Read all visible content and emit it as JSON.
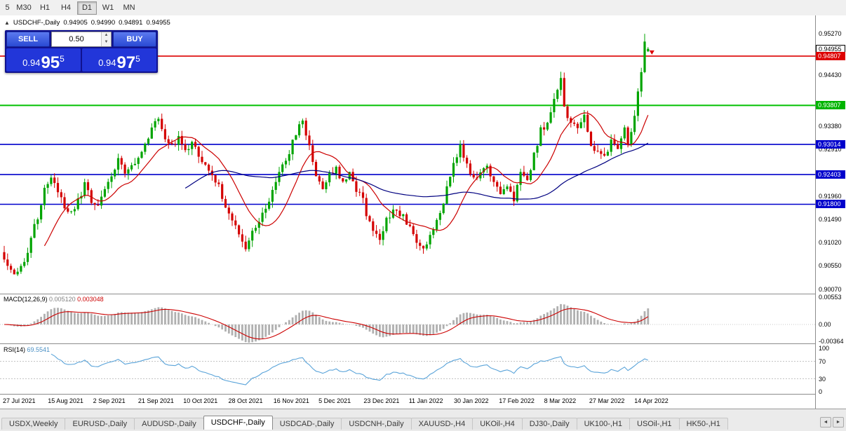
{
  "toolbar": {
    "timeframes": [
      "5",
      "M30",
      "H1",
      "H4",
      "D1",
      "W1",
      "MN"
    ],
    "active": "D1"
  },
  "symbol_info": {
    "collapse_icon": "▲",
    "symbol": "USDCHF-,Daily",
    "open": "0.94905",
    "high": "0.94990",
    "low": "0.94891",
    "close": "0.94955"
  },
  "trade_panel": {
    "sell_label": "SELL",
    "buy_label": "BUY",
    "lot_value": "0.50",
    "spin_up": "▲",
    "spin_down": "▼",
    "sell_price": {
      "base": "0.94",
      "big": "95",
      "pip": "5"
    },
    "buy_price": {
      "base": "0.94",
      "big": "97",
      "pip": "5"
    }
  },
  "price_axis": {
    "scale_labels": [
      "0.95270",
      "0.94430",
      "0.93380",
      "0.92910",
      "0.91960",
      "0.91490",
      "0.91020",
      "0.90550",
      "0.90070"
    ],
    "current_tag": {
      "text": "0.94955"
    },
    "level_tags": [
      {
        "text": "0.94807",
        "color": "#dd0000"
      },
      {
        "text": "0.93807",
        "color": "#00b400"
      },
      {
        "text": "0.93014",
        "color": "#0000cc"
      },
      {
        "text": "0.92403",
        "color": "#0000cc"
      },
      {
        "text": "0.91800",
        "color": "#0000cc"
      }
    ]
  },
  "chart_data": {
    "type": "candlestick",
    "title": "USDCHF-,Daily",
    "last_ohlc": {
      "open": 0.94905,
      "high": 0.9499,
      "low": 0.94891,
      "close": 0.94955
    },
    "ylim": [
      0.9,
      0.9552
    ],
    "x_labels": [
      "27 Jul 2021",
      "15 Aug 2021",
      "2 Sep 2021",
      "21 Sep 2021",
      "10 Oct 2021",
      "28 Oct 2021",
      "16 Nov 2021",
      "5 Dec 2021",
      "23 Dec 2021",
      "11 Jan 2022",
      "30 Jan 2022",
      "17 Feb 2022",
      "8 Mar 2022",
      "27 Mar 2022",
      "14 Apr 2022"
    ],
    "num_candles": 193,
    "up_color": "#00a400",
    "down_color": "#d40000",
    "close_anchors": [
      [
        0,
        0.9068
      ],
      [
        2,
        0.9048
      ],
      [
        4,
        0.9037
      ],
      [
        6,
        0.906
      ],
      [
        8,
        0.911
      ],
      [
        10,
        0.9155
      ],
      [
        12,
        0.9215
      ],
      [
        14,
        0.9232
      ],
      [
        16,
        0.9205
      ],
      [
        18,
        0.917
      ],
      [
        20,
        0.9163
      ],
      [
        22,
        0.9185
      ],
      [
        24,
        0.9218
      ],
      [
        26,
        0.9188
      ],
      [
        28,
        0.918
      ],
      [
        30,
        0.9205
      ],
      [
        32,
        0.924
      ],
      [
        34,
        0.9268
      ],
      [
        36,
        0.9248
      ],
      [
        38,
        0.9262
      ],
      [
        40,
        0.9275
      ],
      [
        42,
        0.93
      ],
      [
        44,
        0.9338
      ],
      [
        46,
        0.9352
      ],
      [
        48,
        0.9315
      ],
      [
        50,
        0.9295
      ],
      [
        52,
        0.9318
      ],
      [
        54,
        0.9288
      ],
      [
        56,
        0.9302
      ],
      [
        58,
        0.9282
      ],
      [
        60,
        0.9262
      ],
      [
        62,
        0.924
      ],
      [
        64,
        0.9215
      ],
      [
        66,
        0.918
      ],
      [
        68,
        0.915
      ],
      [
        70,
        0.9112
      ],
      [
        72,
        0.909
      ],
      [
        74,
        0.9128
      ],
      [
        76,
        0.915
      ],
      [
        78,
        0.9172
      ],
      [
        80,
        0.9205
      ],
      [
        82,
        0.924
      ],
      [
        84,
        0.9272
      ],
      [
        86,
        0.9305
      ],
      [
        88,
        0.934
      ],
      [
        89,
        0.9352
      ],
      [
        91,
        0.9295
      ],
      [
        93,
        0.9242
      ],
      [
        95,
        0.9215
      ],
      [
        97,
        0.9238
      ],
      [
        99,
        0.9252
      ],
      [
        101,
        0.9228
      ],
      [
        103,
        0.9248
      ],
      [
        105,
        0.921
      ],
      [
        107,
        0.919
      ],
      [
        108,
        0.9158
      ],
      [
        110,
        0.9132
      ],
      [
        112,
        0.9112
      ],
      [
        114,
        0.9148
      ],
      [
        116,
        0.917
      ],
      [
        118,
        0.9162
      ],
      [
        120,
        0.9145
      ],
      [
        121,
        0.913
      ],
      [
        123,
        0.9102
      ],
      [
        125,
        0.9092
      ],
      [
        127,
        0.9118
      ],
      [
        129,
        0.9145
      ],
      [
        131,
        0.918
      ],
      [
        133,
        0.924
      ],
      [
        135,
        0.9282
      ],
      [
        136,
        0.93
      ],
      [
        138,
        0.9258
      ],
      [
        140,
        0.9228
      ],
      [
        142,
        0.9245
      ],
      [
        144,
        0.9258
      ],
      [
        146,
        0.9222
      ],
      [
        148,
        0.9196
      ],
      [
        150,
        0.9218
      ],
      [
        152,
        0.919
      ],
      [
        154,
        0.925
      ],
      [
        156,
        0.9222
      ],
      [
        158,
        0.928
      ],
      [
        160,
        0.933
      ],
      [
        162,
        0.9345
      ],
      [
        164,
        0.939
      ],
      [
        166,
        0.9442
      ],
      [
        167,
        0.9372
      ],
      [
        169,
        0.9348
      ],
      [
        171,
        0.933
      ],
      [
        173,
        0.9358
      ],
      [
        175,
        0.9305
      ],
      [
        177,
        0.9282
      ],
      [
        179,
        0.9272
      ],
      [
        181,
        0.9312
      ],
      [
        183,
        0.9285
      ],
      [
        185,
        0.933
      ],
      [
        186,
        0.93
      ],
      [
        188,
        0.936
      ],
      [
        189,
        0.9405
      ],
      [
        190,
        0.9445
      ],
      [
        191,
        0.9505
      ],
      [
        192,
        0.94955
      ]
    ],
    "horizontal_levels": [
      {
        "price": 0.94807,
        "color": "#dd0000",
        "width": 1.6
      },
      {
        "price": 0.93807,
        "color": "#00c000",
        "width": 2
      },
      {
        "price": 0.93014,
        "color": "#0000cc",
        "width": 1.6
      },
      {
        "price": 0.92403,
        "color": "#0000cc",
        "width": 1.6
      },
      {
        "price": 0.918,
        "color": "#0000cc",
        "width": 1.6
      }
    ],
    "moving_averages": [
      {
        "period": 13,
        "color": "#cc0000"
      },
      {
        "period": 55,
        "color": "#000080"
      }
    ],
    "macd": {
      "label": "MACD(12,26,9)",
      "main_value": "0.005120",
      "signal_value": "0.003048",
      "fast": 12,
      "slow": 26,
      "signal": 9,
      "axis_labels": [
        "0.00553",
        "0.00",
        "-0.00364"
      ],
      "histogram_color": "#b0b0b0",
      "signal_color": "#cc0000"
    },
    "rsi": {
      "label": "RSI(14)",
      "value": "69.5541",
      "period": 14,
      "axis_labels": [
        "100",
        "70",
        "30",
        "0"
      ],
      "levels": [
        70,
        30
      ],
      "line_color": "#59a3d9"
    }
  },
  "tabs": {
    "items": [
      "USDX,Weekly",
      "EURUSD-,Daily",
      "AUDUSD-,Daily",
      "USDCHF-,Daily",
      "USDCAD-,Daily",
      "USDCNH-,Daily",
      "XAUUSD-,H4",
      "UKOil-,H4",
      "DJ30-,Daily",
      "UK100-,H1",
      "USOil-,H1",
      "HK50-,H1"
    ],
    "active": "USDCHF-,Daily",
    "scroll_left": "◄",
    "scroll_right": "►"
  }
}
